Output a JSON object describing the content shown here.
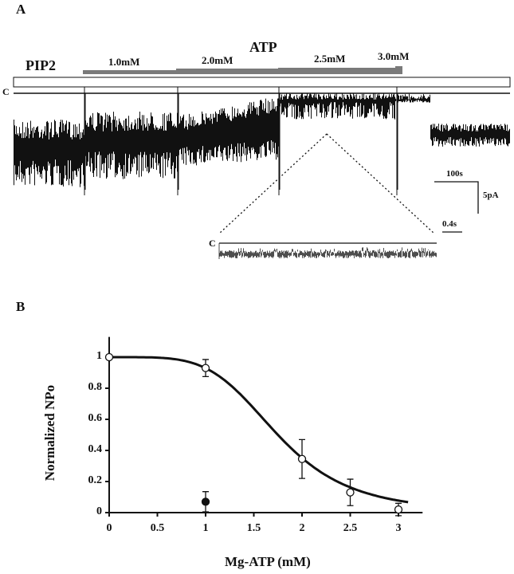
{
  "chart_data": [
    {
      "type": "line",
      "panel": "A",
      "title": "A",
      "treatment_label": "PIP2",
      "drug_label": "ATP",
      "concentrations": [
        "1.0mM",
        "2.0mM",
        "2.5mM",
        "3.0mM"
      ],
      "closed_label": "C",
      "scale_time": "100s",
      "scale_current": "5pA",
      "inset_closed_label": "C",
      "inset_scale_time": "0.4s"
    },
    {
      "type": "scatter",
      "panel": "B",
      "title": "B",
      "xlabel": "Mg-ATP (mM)",
      "ylabel": "Normalized NPo",
      "xlim": [
        0,
        3.25
      ],
      "ylim": [
        0,
        1.13
      ],
      "xticks": [
        "0",
        "0.5",
        "1",
        "1.5",
        "2",
        "2.5",
        "3"
      ],
      "xtick_values": [
        0,
        0.5,
        1,
        1.5,
        2,
        2.5,
        3
      ],
      "yticks": [
        "0",
        "0.2",
        "0.4",
        "0.6",
        "0.8",
        "1"
      ],
      "ytick_values": [
        0,
        0.2,
        0.4,
        0.6,
        0.8,
        1
      ],
      "series": [
        {
          "name": "open",
          "marker": "open-circle",
          "x": [
            0,
            1,
            2,
            2.5,
            3
          ],
          "y": [
            1.0,
            0.93,
            0.345,
            0.13,
            0.02
          ],
          "err": [
            0,
            0.055,
            0.125,
            0.085,
            0.04
          ]
        },
        {
          "name": "filled",
          "marker": "filled-circle",
          "x": [
            1
          ],
          "y": [
            0.07
          ],
          "err": [
            0.065
          ]
        }
      ],
      "fit": {
        "type": "hill",
        "ic50": 1.75,
        "n": 4.6,
        "x_range": [
          0,
          3.25
        ]
      }
    }
  ]
}
